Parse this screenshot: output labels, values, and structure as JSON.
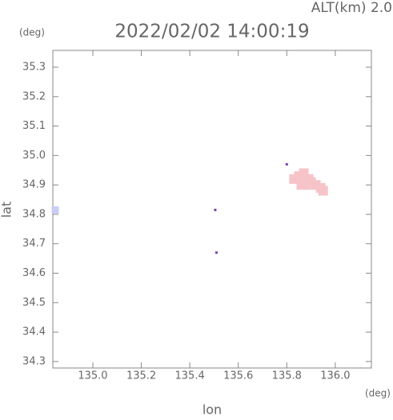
{
  "chart_data": {
    "type": "scatter",
    "title": "2022/02/02 14:00:19",
    "subtitle": "ALT(km) 2.0",
    "x_label": "lon",
    "y_label": "lat",
    "x_unit": "(deg)",
    "y_unit": "(deg)",
    "xlim": [
      134.835,
      136.149
    ],
    "ylim": [
      34.278,
      35.357
    ],
    "xticks": [
      {
        "value": 135,
        "label": "135.0"
      },
      135.2,
      135.4,
      135.6,
      135.8,
      {
        "value": 136,
        "label": "136.0"
      }
    ],
    "yticks": [
      34.3,
      34.4,
      34.5,
      34.6,
      34.7,
      34.8,
      34.9,
      {
        "value": 35,
        "label": "35.0"
      },
      35.1,
      35.2,
      35.3
    ],
    "series": [
      {
        "color": "#f6c4c8",
        "x": [
          135.83,
          135.85,
          135.87,
          135.89,
          135.9,
          135.92,
          135.94,
          135.95,
          135.86,
          135.88
        ],
        "y": [
          34.92,
          34.93,
          34.94,
          34.92,
          34.91,
          34.9,
          34.89,
          34.88,
          34.9,
          34.9
        ]
      },
      {
        "color": "#c8cdf4",
        "x": [
          134.845
        ],
        "y": [
          34.815
        ]
      },
      {
        "color": "#7a3fb0",
        "x": [
          135.505,
          135.51,
          135.8
        ],
        "y": [
          34.815,
          34.67,
          34.97
        ]
      }
    ]
  }
}
